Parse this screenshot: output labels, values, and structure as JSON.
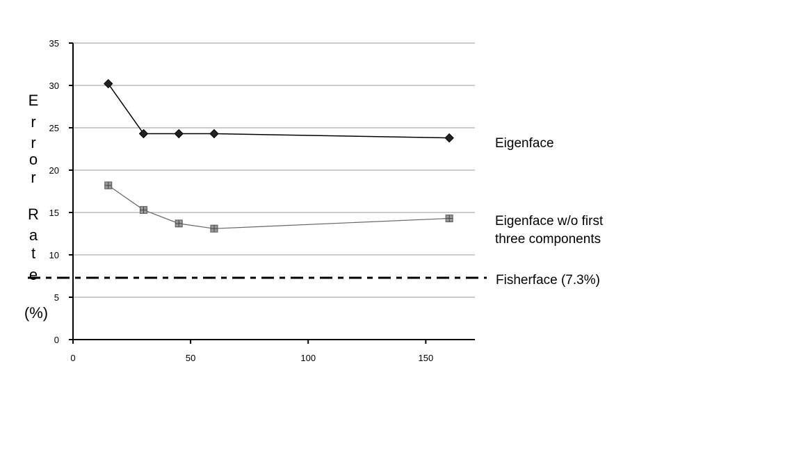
{
  "chart_data": {
    "type": "line",
    "xlim": [
      0,
      170
    ],
    "ylim": [
      0,
      35
    ],
    "xticks": [
      0,
      50,
      100,
      150
    ],
    "yticks": [
      0,
      5,
      10,
      15,
      20,
      25,
      30,
      35
    ],
    "grid": "horizontal",
    "ylabel": "Error Rate (%)",
    "xlabel": "",
    "ylabel_parts": [
      "E",
      "r",
      "r",
      "o",
      "r",
      "R",
      "a",
      "t",
      "e",
      "(%)"
    ],
    "series": [
      {
        "name": "Eigenface",
        "marker": "diamond",
        "color": "#000000",
        "x": [
          15,
          30,
          45,
          60,
          160
        ],
        "y": [
          30.2,
          24.3,
          24.3,
          24.3,
          23.8
        ]
      },
      {
        "name": "Eigenface w/o first three components",
        "name_lines": [
          "Eigenface w/o first",
          "three components"
        ],
        "marker": "square-hatched",
        "color": "#555555",
        "x": [
          15,
          30,
          45,
          60,
          160
        ],
        "y": [
          18.2,
          15.3,
          13.7,
          13.1,
          14.3
        ]
      }
    ],
    "reference_lines": [
      {
        "name": "Fisherface (7.3%)",
        "y": 7.3,
        "style": "dash-dot",
        "color": "#000000"
      }
    ]
  }
}
